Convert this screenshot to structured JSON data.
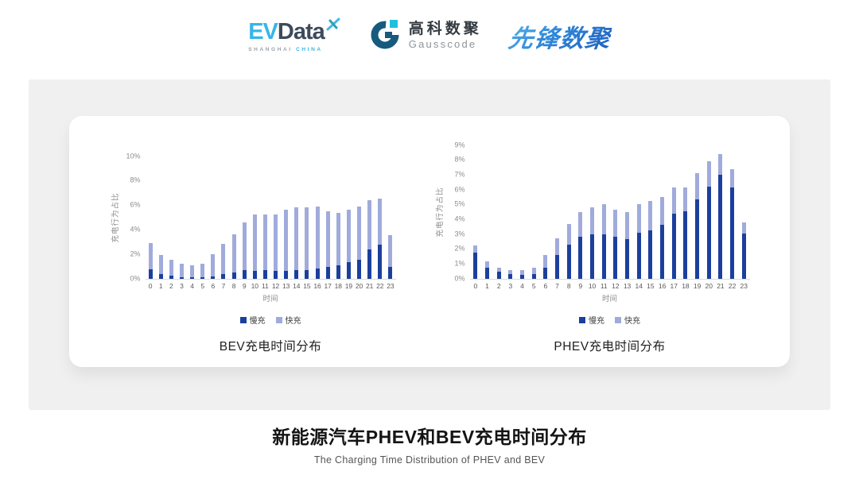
{
  "header": {
    "logos": {
      "evdata": {
        "ev": "EV",
        "data": "Data",
        "tagline_left": "SHANGHAI",
        "tagline_right": "CHINA",
        "accent_color": "#38b5e8",
        "dark_color": "#3d4a5c"
      },
      "gausscode": {
        "name_cn": "高科数聚",
        "name_en": "Gausscode",
        "icon_color": "#175a7d",
        "icon_accent": "#1ec0dd"
      },
      "pioneer": {
        "name": "先锋数聚",
        "color": "#2e86d8"
      }
    }
  },
  "chart_data": [
    {
      "type": "bar",
      "stacked": true,
      "title": "BEV充电时间分布",
      "xlabel": "时间",
      "ylabel": "充电行为占比",
      "categories": [
        "0",
        "1",
        "2",
        "3",
        "4",
        "5",
        "6",
        "7",
        "8",
        "9",
        "10",
        "11",
        "12",
        "13",
        "14",
        "15",
        "16",
        "17",
        "18",
        "19",
        "20",
        "21",
        "22",
        "23"
      ],
      "ylim": [
        0,
        10
      ],
      "yticks": [
        "0%",
        "2%",
        "4%",
        "6%",
        "8%",
        "10%"
      ],
      "grid": false,
      "legend_position": "bottom",
      "series": [
        {
          "name": "慢充",
          "color": "#1B3F9D",
          "values": [
            0.75,
            0.35,
            0.2,
            0.1,
            0.1,
            0.1,
            0.15,
            0.35,
            0.5,
            0.7,
            0.65,
            0.7,
            0.6,
            0.65,
            0.7,
            0.7,
            0.8,
            0.95,
            1.1,
            1.3,
            1.55,
            2.4,
            2.75,
            0.95
          ]
        },
        {
          "name": "快充",
          "color": "#A0ABDC",
          "values": [
            2.15,
            1.55,
            1.3,
            1.1,
            1.0,
            1.1,
            1.85,
            2.45,
            3.1,
            3.9,
            4.55,
            4.55,
            4.65,
            5.0,
            5.1,
            5.1,
            5.05,
            4.55,
            4.25,
            4.3,
            4.35,
            4.0,
            3.8,
            2.6
          ]
        }
      ]
    },
    {
      "type": "bar",
      "stacked": true,
      "title": "PHEV充电时间分布",
      "xlabel": "时间",
      "ylabel": "充电行为占比",
      "categories": [
        "0",
        "1",
        "2",
        "3",
        "4",
        "5",
        "6",
        "7",
        "8",
        "9",
        "10",
        "11",
        "12",
        "13",
        "14",
        "15",
        "16",
        "17",
        "18",
        "19",
        "20",
        "21",
        "22",
        "23"
      ],
      "ylim": [
        0,
        9
      ],
      "yticks": [
        "0%",
        "1%",
        "2%",
        "3%",
        "4%",
        "5%",
        "6%",
        "7%",
        "8%",
        "9%"
      ],
      "grid": false,
      "legend_position": "bottom",
      "series": [
        {
          "name": "慢充",
          "color": "#1B3F9D",
          "values": [
            1.75,
            0.75,
            0.45,
            0.3,
            0.25,
            0.3,
            0.75,
            1.6,
            2.3,
            2.8,
            3.0,
            3.0,
            2.8,
            2.65,
            3.1,
            3.25,
            3.6,
            4.35,
            4.55,
            5.35,
            6.2,
            7.0,
            6.15,
            3.05
          ]
        },
        {
          "name": "快充",
          "color": "#A0ABDC",
          "values": [
            0.45,
            0.4,
            0.3,
            0.25,
            0.3,
            0.4,
            0.85,
            1.1,
            1.35,
            1.7,
            1.8,
            2.0,
            1.85,
            1.85,
            1.9,
            2.0,
            1.9,
            1.8,
            1.6,
            1.75,
            1.7,
            1.4,
            1.2,
            0.75
          ]
        }
      ]
    }
  ],
  "footer": {
    "title": "新能源汽车PHEV和BEV充电时间分布",
    "subtitle": "The Charging Time Distribution of PHEV and BEV"
  }
}
